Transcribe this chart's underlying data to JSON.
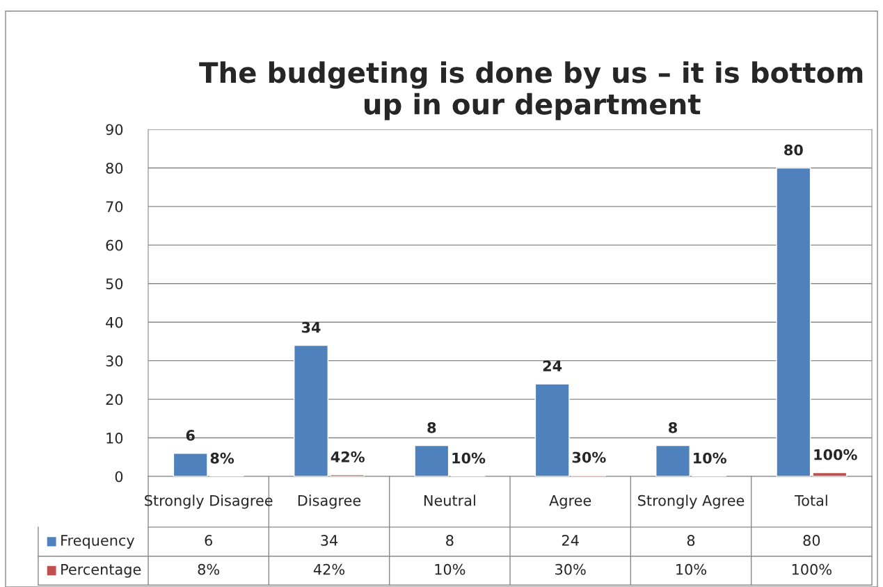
{
  "chart_data": {
    "type": "bar",
    "title": "The budgeting is done by us – it is bottom up in our department",
    "categories": [
      "Strongly Disagree",
      "Disagree",
      "Neutral",
      "Agree",
      "Strongly Agree",
      "Total"
    ],
    "series": [
      {
        "name": "Frequency",
        "color": "#4f81bd",
        "values": [
          6,
          34,
          8,
          24,
          8,
          80
        ],
        "value_labels": [
          "6",
          "34",
          "8",
          "24",
          "8",
          "80"
        ]
      },
      {
        "name": "Percentage",
        "color": "#c0504d",
        "values": [
          0.08,
          0.42,
          0.1,
          0.3,
          0.1,
          1
        ],
        "value_labels": [
          "8%",
          "42%",
          "10%",
          "30%",
          "10%",
          "100%"
        ]
      }
    ],
    "ylim": [
      0,
      90
    ],
    "yticks": [
      0,
      10,
      20,
      30,
      40,
      50,
      60,
      70,
      80,
      90
    ],
    "grid": "y",
    "legend": "bottom"
  }
}
